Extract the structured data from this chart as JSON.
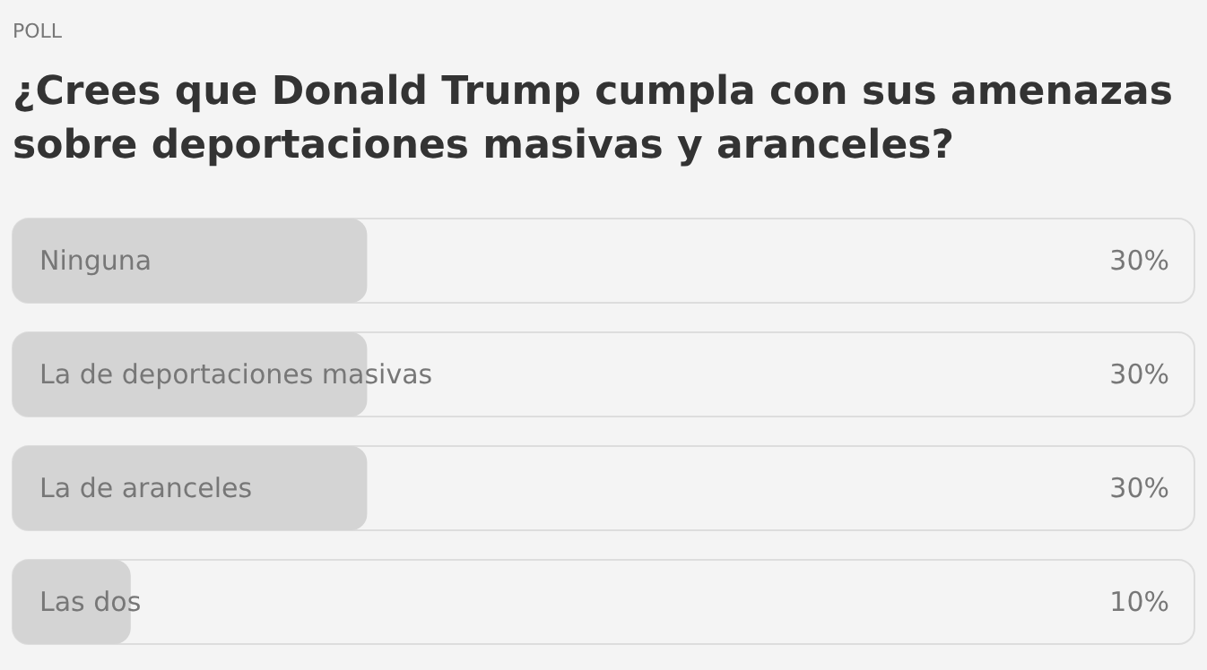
{
  "chart_data": {
    "type": "bar",
    "orientation": "horizontal",
    "annotations": [
      "POLL"
    ],
    "title": "¿Crees que Donald Trump cumpla con sus amenazas sobre deportaciones masivas y aranceles?",
    "categories": [
      "Ninguna",
      "La de deportaciones masivas",
      "La de aranceles",
      "Las dos"
    ],
    "values": [
      30,
      30,
      30,
      10
    ],
    "value_labels": [
      "30%",
      "30%",
      "30%",
      "10%"
    ],
    "color": "#d4d4d4",
    "xlim": [
      0,
      100
    ]
  }
}
